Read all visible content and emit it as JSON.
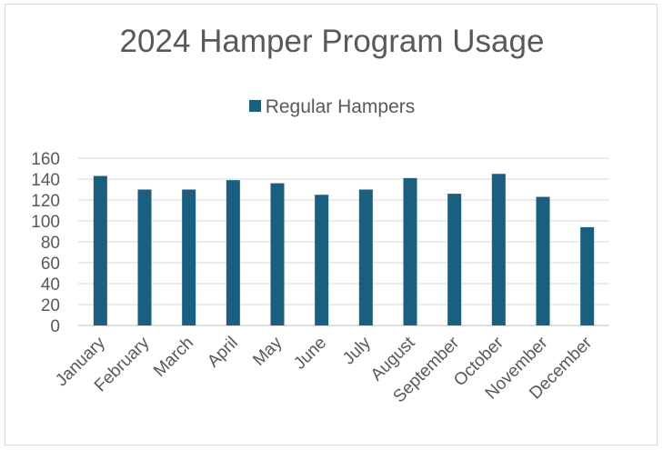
{
  "chart_data": {
    "type": "bar",
    "title": "2024 Hamper Program Usage",
    "categories": [
      "January",
      "February",
      "March",
      "April",
      "May",
      "June",
      "July",
      "August",
      "September",
      "October",
      "November",
      "December"
    ],
    "series": [
      {
        "name": "Regular Hampers",
        "color": "#1a5f80",
        "values": [
          143,
          130,
          130,
          139,
          136,
          125,
          130,
          141,
          126,
          145,
          123,
          94
        ]
      }
    ],
    "ylim": [
      0,
      160
    ],
    "yticks": [
      "0",
      "20",
      "40",
      "60",
      "80",
      "100",
      "120",
      "140",
      "160"
    ],
    "grid": true,
    "legend": "top"
  }
}
